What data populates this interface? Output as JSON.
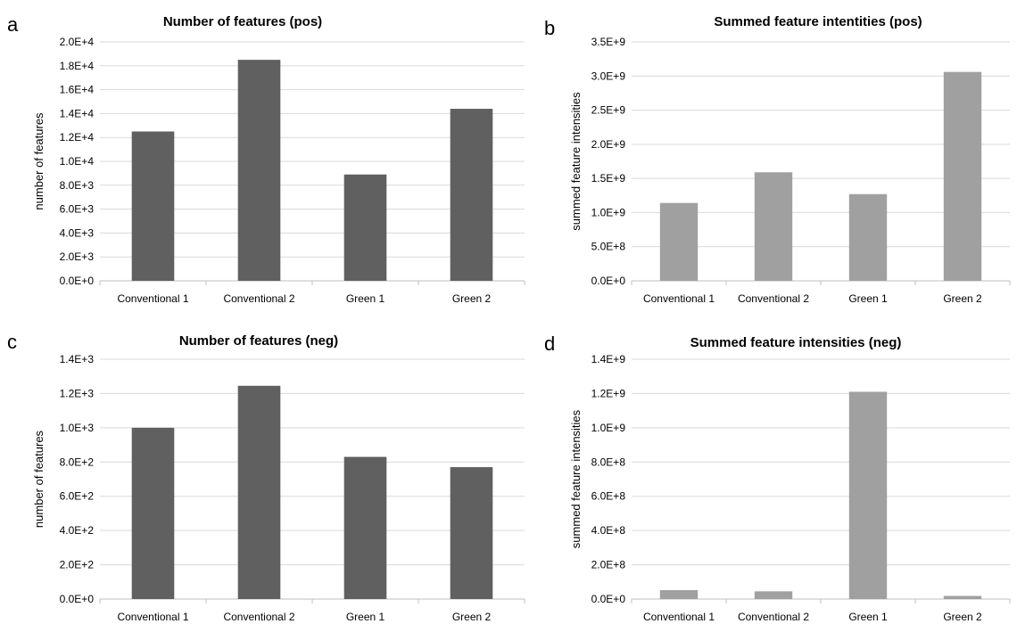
{
  "chart_data": [
    {
      "panel": "a",
      "type": "bar",
      "title": "Number of features (pos)",
      "xlabel": "",
      "ylabel": "number of features",
      "categories": [
        "Conventional 1",
        "Conventional 2",
        "Green 1",
        "Green 2"
      ],
      "values": [
        12500,
        18500,
        8900,
        14400
      ],
      "ylim": [
        0,
        20000
      ],
      "yticks": [
        "0.0E+0",
        "2.0E+3",
        "4.0E+3",
        "6.0E+3",
        "8.0E+3",
        "1.0E+4",
        "1.2E+4",
        "1.4E+4",
        "1.6E+4",
        "1.8E+4",
        "2.0E+4"
      ],
      "bar_color": "#606060",
      "grid": true,
      "legend": false
    },
    {
      "panel": "b",
      "type": "bar",
      "title": "Summed feature intentities (pos)",
      "xlabel": "",
      "ylabel": "summed feature intensities",
      "categories": [
        "Conventional 1",
        "Conventional 2",
        "Green 1",
        "Green 2"
      ],
      "values": [
        1140000000,
        1590000000,
        1270000000,
        3060000000
      ],
      "ylim": [
        0,
        3500000000
      ],
      "yticks": [
        "0.0E+0",
        "5.0E+8",
        "1.0E+9",
        "1.5E+9",
        "2.0E+9",
        "2.5E+9",
        "3.0E+9",
        "3.5E+9"
      ],
      "bar_color": "#a0a0a0",
      "grid": true,
      "legend": false
    },
    {
      "panel": "c",
      "type": "bar",
      "title": "Number of features (neg)",
      "xlabel": "",
      "ylabel": "number of features",
      "categories": [
        "Conventional 1",
        "Conventional 2",
        "Green 1",
        "Green 2"
      ],
      "values": [
        1000,
        1245,
        830,
        770
      ],
      "ylim": [
        0,
        1400
      ],
      "yticks": [
        "0.0E+0",
        "2.0E+2",
        "4.0E+2",
        "6.0E+2",
        "8.0E+2",
        "1.0E+3",
        "1.2E+3",
        "1.4E+3"
      ],
      "bar_color": "#606060",
      "grid": true,
      "legend": false
    },
    {
      "panel": "d",
      "type": "bar",
      "title": "Summed feature intensities (neg)",
      "xlabel": "",
      "ylabel": "summed feature intensities",
      "categories": [
        "Conventional 1",
        "Conventional 2",
        "Green 1",
        "Green 2"
      ],
      "values": [
        52000000,
        45000000,
        1210000000,
        18000000
      ],
      "ylim": [
        0,
        1400000000
      ],
      "yticks": [
        "0.0E+0",
        "2.0E+8",
        "4.0E+8",
        "6.0E+8",
        "8.0E+8",
        "1.0E+9",
        "1.2E+9",
        "1.4E+9"
      ],
      "bar_color": "#a0a0a0",
      "grid": true,
      "legend": false
    }
  ]
}
